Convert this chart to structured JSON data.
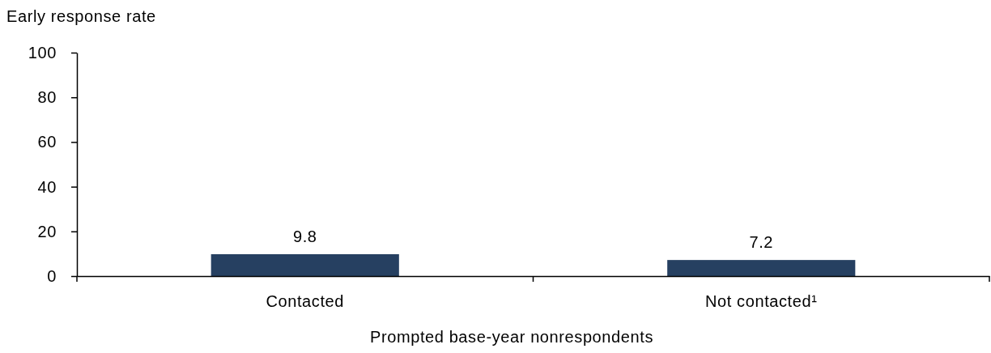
{
  "chart_data": {
    "type": "bar",
    "ylabel": "Early response rate",
    "xlabel": "Prompted base-year nonrespondents",
    "categories": [
      "Contacted",
      "Not contacted¹"
    ],
    "values": [
      9.8,
      7.2
    ],
    "color": "#264061",
    "ylim": [
      0,
      100
    ],
    "yticks": [
      0,
      20,
      40,
      60,
      80,
      100
    ],
    "data_labels": true
  }
}
